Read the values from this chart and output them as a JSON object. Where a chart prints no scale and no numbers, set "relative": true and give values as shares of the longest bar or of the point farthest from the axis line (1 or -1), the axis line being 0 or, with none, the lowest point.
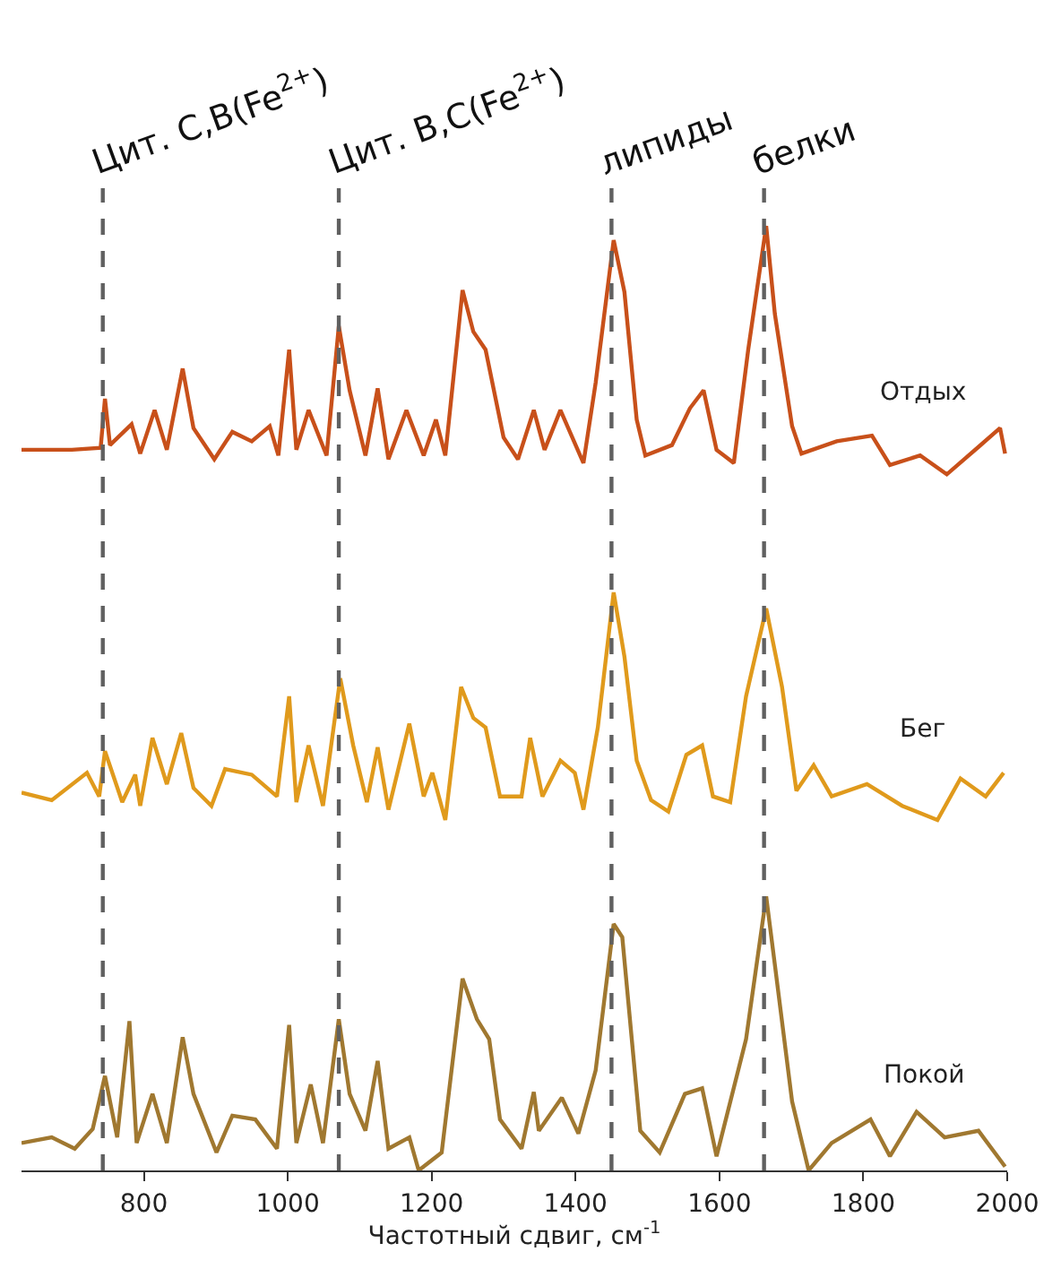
{
  "chart_data": {
    "type": "line",
    "relative": true,
    "xlabel": "Частотный сдвиг, см$^{-1}$",
    "xlim": [
      630,
      2000
    ],
    "xticks": [
      800,
      1000,
      1200,
      1400,
      1600,
      1800,
      2000
    ],
    "tick_labels": "x",
    "legend": false,
    "marker": "none",
    "line_style": "solid",
    "series": [
      {
        "name": "Отдых",
        "color": "#c8501a",
        "x": [
          630,
          700,
          740,
          746,
          753,
          783,
          795,
          815,
          832,
          854,
          869,
          898,
          923,
          950,
          975,
          987,
          1002,
          1012,
          1029,
          1054,
          1071,
          1086,
          1108,
          1125,
          1140,
          1165,
          1189,
          1206,
          1219,
          1243,
          1258,
          1275,
          1300,
          1320,
          1342,
          1357,
          1379,
          1411,
          1428,
          1453,
          1468,
          1485,
          1497,
          1534,
          1559,
          1578,
          1596,
          1620,
          1640,
          1665,
          1677,
          1701,
          1714,
          1763,
          1812,
          1837,
          1879,
          1916,
          1960,
          1990,
          1997
        ],
        "values": [
          0.763,
          0.763,
          0.765,
          0.817,
          0.768,
          0.79,
          0.759,
          0.805,
          0.763,
          0.849,
          0.786,
          0.753,
          0.782,
          0.772,
          0.788,
          0.757,
          0.869,
          0.763,
          0.805,
          0.757,
          0.894,
          0.826,
          0.757,
          0.828,
          0.753,
          0.805,
          0.757,
          0.795,
          0.757,
          0.932,
          0.888,
          0.869,
          0.776,
          0.753,
          0.805,
          0.763,
          0.805,
          0.749,
          0.834,
          0.985,
          0.93,
          0.795,
          0.757,
          0.768,
          0.807,
          0.826,
          0.763,
          0.749,
          0.869,
          1.0,
          0.907,
          0.788,
          0.759,
          0.772,
          0.778,
          0.747,
          0.757,
          0.737,
          0.766,
          0.786,
          0.759
        ]
      },
      {
        "name": "Бег",
        "color": "#e09a1c",
        "x": [
          630,
          672,
          721,
          738,
          746,
          770,
          788,
          795,
          812,
          832,
          852,
          869,
          894,
          913,
          950,
          985,
          1002,
          1012,
          1029,
          1049,
          1073,
          1091,
          1110,
          1125,
          1140,
          1169,
          1189,
          1201,
          1219,
          1241,
          1258,
          1275,
          1295,
          1325,
          1337,
          1354,
          1379,
          1399,
          1411,
          1431,
          1453,
          1468,
          1485,
          1505,
          1529,
          1554,
          1576,
          1591,
          1615,
          1637,
          1665,
          1687,
          1707,
          1731,
          1756,
          1805,
          1854,
          1903,
          1935,
          1970,
          1995
        ],
        "values": [
          0.4,
          0.392,
          0.421,
          0.396,
          0.444,
          0.39,
          0.419,
          0.386,
          0.458,
          0.409,
          0.463,
          0.405,
          0.386,
          0.425,
          0.419,
          0.396,
          0.502,
          0.39,
          0.45,
          0.386,
          0.521,
          0.45,
          0.39,
          0.448,
          0.382,
          0.473,
          0.396,
          0.421,
          0.371,
          0.512,
          0.479,
          0.469,
          0.396,
          0.396,
          0.458,
          0.396,
          0.434,
          0.421,
          0.382,
          0.469,
          0.612,
          0.544,
          0.434,
          0.392,
          0.38,
          0.44,
          0.45,
          0.396,
          0.39,
          0.502,
          0.595,
          0.512,
          0.402,
          0.429,
          0.396,
          0.409,
          0.386,
          0.371,
          0.415,
          0.396,
          0.421
        ]
      },
      {
        "name": "Покой",
        "color": "#a07830",
        "x": [
          630,
          672,
          704,
          729,
          746,
          763,
          780,
          790,
          812,
          832,
          854,
          869,
          901,
          923,
          955,
          985,
          1002,
          1012,
          1032,
          1049,
          1071,
          1086,
          1108,
          1125,
          1140,
          1169,
          1182,
          1214,
          1243,
          1263,
          1280,
          1295,
          1325,
          1342,
          1349,
          1381,
          1404,
          1428,
          1453,
          1465,
          1490,
          1517,
          1552,
          1576,
          1596,
          1637,
          1665,
          1677,
          1701,
          1724,
          1756,
          1810,
          1837,
          1874,
          1913,
          1960,
          1997
        ],
        "values": [
          0.029,
          0.035,
          0.023,
          0.044,
          0.1,
          0.035,
          0.158,
          0.029,
          0.081,
          0.029,
          0.141,
          0.081,
          0.019,
          0.058,
          0.054,
          0.023,
          0.154,
          0.029,
          0.091,
          0.029,
          0.16,
          0.081,
          0.042,
          0.116,
          0.023,
          0.035,
          0.0,
          0.019,
          0.203,
          0.16,
          0.139,
          0.054,
          0.023,
          0.083,
          0.042,
          0.077,
          0.039,
          0.106,
          0.261,
          0.247,
          0.042,
          0.019,
          0.081,
          0.087,
          0.015,
          0.139,
          0.29,
          0.218,
          0.073,
          0.0,
          0.029,
          0.054,
          0.015,
          0.062,
          0.035,
          0.042,
          0.004
        ]
      }
    ],
    "ref_lines": [
      {
        "axis": "x",
        "value": 743,
        "label": "Цит. C,B(Fe$^{2+}$)",
        "color": "#606060",
        "line_style": "dashed"
      },
      {
        "axis": "x",
        "value": 1071,
        "label": "Цит. B,C(Fe$^{2+}$)",
        "color": "#606060",
        "line_style": "dashed"
      },
      {
        "axis": "x",
        "value": 1450,
        "label": "липиды",
        "color": "#606060",
        "line_style": "dashed"
      },
      {
        "axis": "x",
        "value": 1662,
        "label": "белки",
        "color": "#606060",
        "line_style": "dashed"
      }
    ]
  }
}
